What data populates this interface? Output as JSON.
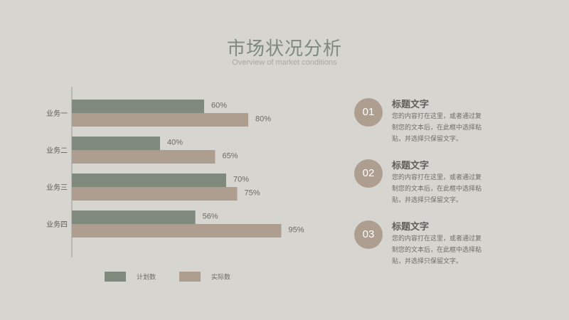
{
  "page": {
    "title": "市场状况分析",
    "subtitle": "Overview of market conditions"
  },
  "colors": {
    "background": "#d6d5d0",
    "series1": "#7f8a7d",
    "series2": "#ae9e8f",
    "title": "#7e8a7f"
  },
  "chart_data": {
    "type": "bar",
    "orientation": "horizontal",
    "categories": [
      "业务一",
      "业务二",
      "业务三",
      "业务四"
    ],
    "series": [
      {
        "name": "计划数",
        "values": [
          60,
          40,
          70,
          56
        ],
        "labels": [
          "60%",
          "40%",
          "70%",
          "56%"
        ]
      },
      {
        "name": "实际数",
        "values": [
          80,
          65,
          75,
          95
        ],
        "labels": [
          "80%",
          "65%",
          "75%",
          "95%"
        ]
      }
    ],
    "xlim": [
      0,
      100
    ],
    "legend_position": "bottom",
    "grid": false
  },
  "items": [
    {
      "num": "01",
      "title": "标题文字",
      "text": "您的内容打在这里，或者通过复制您的文本后，在此框中选择粘贴，并选择只保留文字。"
    },
    {
      "num": "02",
      "title": "标题文字",
      "text": "您的内容打在这里，或者通过复制您的文本后，在此框中选择粘贴，并选择只保留文字。"
    },
    {
      "num": "03",
      "title": "标题文字",
      "text": "您的内容打在这里，或者通过复制您的文本后，在此框中选择粘贴，并选择只保留文字。"
    }
  ]
}
